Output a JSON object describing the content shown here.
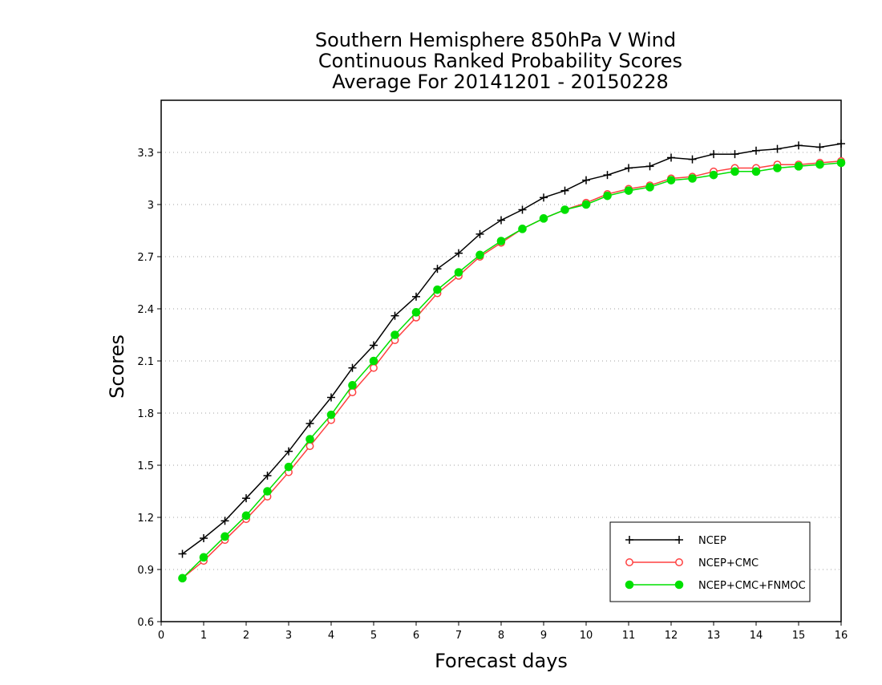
{
  "chart_data": {
    "type": "line",
    "title": [
      "Southern Hemisphere 850hPa V Wind",
      "Continuous Ranked Probability Scores",
      "Average For 20141201 - 20150228"
    ],
    "xlabel": "Forecast days",
    "ylabel": "Scores",
    "xlim": [
      0,
      16
    ],
    "ylim": [
      0.6,
      3.6
    ],
    "xticks": [
      0,
      1,
      2,
      3,
      4,
      5,
      6,
      7,
      8,
      9,
      10,
      11,
      12,
      13,
      14,
      15,
      16
    ],
    "yticks": [
      0.6,
      0.9,
      1.2,
      1.5,
      1.8,
      2.1,
      2.4,
      2.7,
      3.0,
      3.3
    ],
    "ytick_labels": [
      "0.6",
      "0.9",
      "1.2",
      "1.5",
      "1.8",
      "2.1",
      "2.4",
      "2.7",
      "3",
      "3.3"
    ],
    "grid": "horizontal-dotted",
    "legend_position": "bottom-right",
    "x": [
      0.5,
      1.0,
      1.5,
      2.0,
      2.5,
      3.0,
      3.5,
      4.0,
      4.5,
      5.0,
      5.5,
      6.0,
      6.5,
      7.0,
      7.5,
      8.0,
      8.5,
      9.0,
      9.5,
      10.0,
      10.5,
      11.0,
      11.5,
      12.0,
      12.5,
      13.0,
      13.5,
      14.0,
      14.5,
      15.0,
      15.5,
      16.0
    ],
    "series": [
      {
        "name": "NCEP",
        "color": "#000000",
        "marker": "plus",
        "values": [
          0.99,
          1.08,
          1.18,
          1.31,
          1.44,
          1.58,
          1.74,
          1.89,
          2.06,
          2.19,
          2.36,
          2.47,
          2.63,
          2.72,
          2.83,
          2.91,
          2.97,
          3.04,
          3.08,
          3.14,
          3.17,
          3.21,
          3.22,
          3.27,
          3.26,
          3.29,
          3.29,
          3.31,
          3.32,
          3.34,
          3.33,
          3.35
        ]
      },
      {
        "name": "NCEP+CMC",
        "color": "#ff4040",
        "marker": "open-circle",
        "values": [
          0.85,
          0.95,
          1.07,
          1.19,
          1.32,
          1.46,
          1.61,
          1.76,
          1.92,
          2.06,
          2.22,
          2.35,
          2.49,
          2.59,
          2.7,
          2.78,
          2.86,
          2.92,
          2.97,
          3.01,
          3.06,
          3.09,
          3.11,
          3.15,
          3.16,
          3.19,
          3.21,
          3.21,
          3.23,
          3.23,
          3.24,
          3.25
        ]
      },
      {
        "name": "NCEP+CMC+FNMOC",
        "color": "#00e000",
        "marker": "filled-circle",
        "values": [
          0.85,
          0.97,
          1.09,
          1.21,
          1.35,
          1.49,
          1.65,
          1.79,
          1.96,
          2.1,
          2.25,
          2.38,
          2.51,
          2.61,
          2.71,
          2.79,
          2.86,
          2.92,
          2.97,
          3.0,
          3.05,
          3.08,
          3.1,
          3.14,
          3.15,
          3.17,
          3.19,
          3.19,
          3.21,
          3.22,
          3.23,
          3.24
        ]
      }
    ]
  }
}
